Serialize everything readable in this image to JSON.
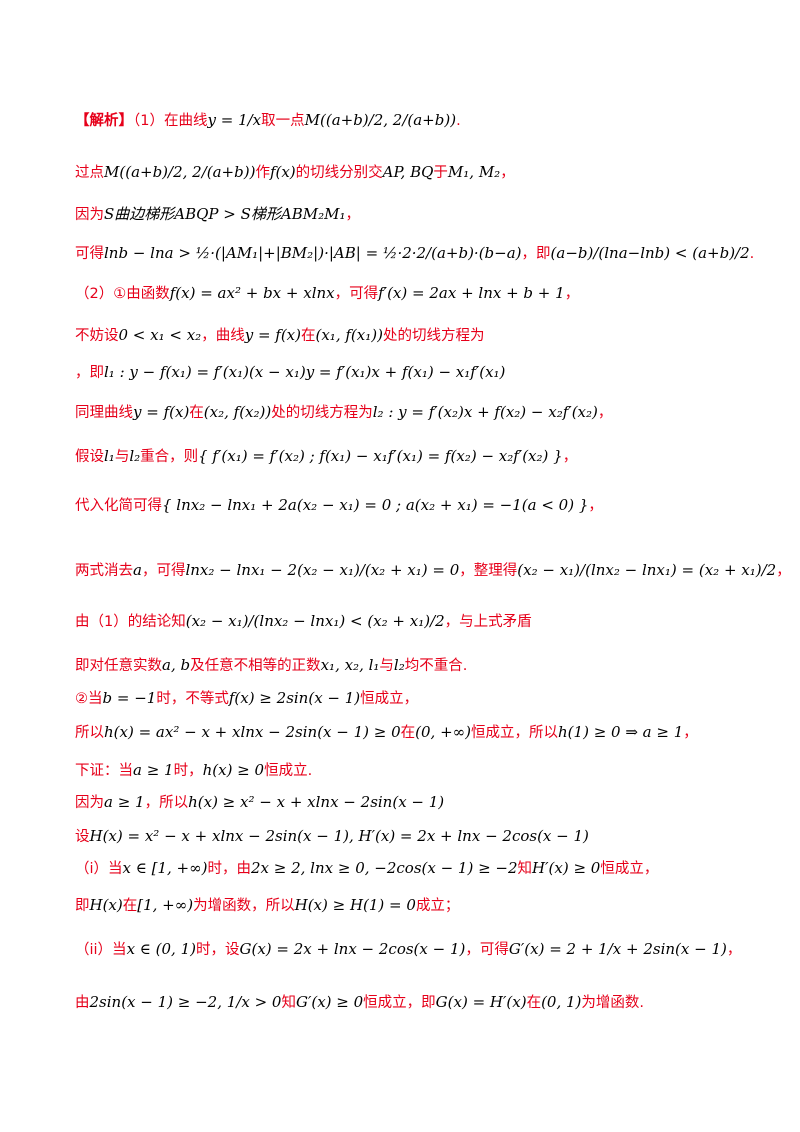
{
  "lines": [
    {
      "tag": "【解析】",
      "cn1": "（1）在曲线",
      "m1": "y = 1/x",
      "cn2": "取一点",
      "m2": "M((a+b)/2, 2/(a+b))",
      "cn3": "."
    },
    {
      "cn1": "过点",
      "m1": "M((a+b)/2, 2/(a+b))",
      "cn2": "作",
      "m2": "f(x)",
      "cn3": "的切线分别交",
      "m3": "AP, BQ",
      "cn4": "于",
      "m4": "M₁, M₂",
      "cn5": "，"
    },
    {
      "cn1": "因为",
      "m1": "S曲边梯形ABQP > S梯形ABM₂M₁",
      "cn2": "，"
    },
    {
      "cn1": "可得",
      "m1": "lnb − lna > ½·(|AM₁|+|BM₂|)·|AB| = ½·2·2/(a+b)·(b−a)",
      "cn2": "，即",
      "m2": "(a−b)/(lna−lnb) < (a+b)/2",
      "cn3": "."
    },
    {
      "cn1": "（2）①由函数",
      "m1": "f(x) = ax² + bx + xlnx",
      "cn2": "，可得",
      "m2": "f′(x) = 2ax + lnx + b + 1",
      "cn3": "，"
    },
    {
      "cn1": "不妨设",
      "m1": "0 < x₁ < x₂",
      "cn2": "，曲线",
      "m2": "y = f(x)",
      "cn3": "在",
      "m3": "(x₁, f(x₁))",
      "cn4": "处的切线方程为"
    },
    {
      "m1": "l₁ : y − f(x₁) = f′(x₁)(x − x₁)",
      "cn1": "，即",
      "m2": "y = f′(x₁)x + f(x₁) − x₁f′(x₁)"
    },
    {
      "cn1": "同理曲线",
      "m1": "y = f(x)",
      "cn2": "在",
      "m2": "(x₂, f(x₂))",
      "cn3": "处的切线方程为",
      "m3": "l₂ : y = f′(x₂)x + f(x₂) − x₂f′(x₂)",
      "cn4": "，"
    },
    {
      "cn1": "假设",
      "m1": "l₁",
      "cn2": "与",
      "m2": "l₂",
      "cn3": "重合，则",
      "m3": "{ f′(x₁) = f′(x₂) ; f(x₁) − x₁f′(x₁) = f(x₂) − x₂f′(x₂) }",
      "cn4": "，"
    },
    {
      "cn1": "代入化简可得",
      "m1": "{ lnx₂ − lnx₁ + 2a(x₂ − x₁) = 0 ; a(x₂ + x₁) = −1(a < 0) }",
      "cn2": "，"
    },
    {
      "cn1": "两式消去",
      "m1": "a",
      "cn2": "，可得",
      "m2": "lnx₂ − lnx₁ − 2(x₂ − x₁)/(x₂ + x₁) = 0",
      "cn3": "，整理得",
      "m3": "(x₂ − x₁)/(lnx₂ − lnx₁) = (x₂ + x₁)/2",
      "cn4": "，"
    },
    {
      "cn1": "由（1）的结论知",
      "m1": "(x₂ − x₁)/(lnx₂ − lnx₁) < (x₂ + x₁)/2",
      "cn2": "，与上式矛盾"
    },
    {
      "cn1": "即对任意实数",
      "m1": "a, b",
      "cn2": "及任意不相等的正数",
      "m2": "x₁, x₂, l₁",
      "cn3": "与",
      "m3": "l₂",
      "cn4": "均不重合."
    },
    {
      "cn1": "②当",
      "m1": "b = −1",
      "cn2": "时，不等式",
      "m2": "f(x) ≥ 2sin(x − 1)",
      "cn3": "恒成立，"
    },
    {
      "cn1": "所以",
      "m1": "h(x) = ax² − x + xlnx − 2sin(x − 1) ≥ 0",
      "cn2": "在",
      "m2": "(0, +∞)",
      "cn3": "恒成立，所以",
      "m3": "h(1) ≥ 0 ⇒ a ≥ 1",
      "cn4": "，"
    },
    {
      "cn1": "下证：当",
      "m1": "a ≥ 1",
      "cn2": "时，",
      "m2": "h(x) ≥ 0",
      "cn3": "恒成立."
    },
    {
      "cn1": "因为",
      "m1": "a ≥ 1",
      "cn2": "，所以",
      "m2": "h(x) ≥ x² − x + xlnx − 2sin(x − 1)"
    },
    {
      "cn1": "设",
      "m1": "H(x) = x² − x + xlnx − 2sin(x − 1), H′(x) = 2x + lnx − 2cos(x − 1)"
    },
    {
      "cn1": "（i）当",
      "m1": "x ∈ [1, +∞)",
      "cn2": "时，由",
      "m2": "2x ≥ 2, lnx ≥ 0, −2cos(x − 1) ≥ −2",
      "cn3": "知",
      "m3": "H′(x) ≥ 0",
      "cn4": "恒成立，"
    },
    {
      "cn1": "即",
      "m1": "H(x)",
      "cn2": "在",
      "m2": "[1, +∞)",
      "cn3": "为增函数，所以",
      "m3": "H(x) ≥ H(1) = 0",
      "cn4": "成立；"
    },
    {
      "cn1": "（ii）当",
      "m1": "x ∈ (0, 1)",
      "cn2": "时，设",
      "m2": "G(x) = 2x + lnx − 2cos(x − 1)",
      "cn3": "，可得",
      "m3": "G′(x) = 2 + 1/x + 2sin(x − 1)",
      "cn4": "，"
    },
    {
      "cn1": "由",
      "m1": "2sin(x − 1) ≥ −2, 1/x > 0",
      "cn2": "知",
      "m2": "G′(x) ≥ 0",
      "cn3": "恒成立，即",
      "m3": "G(x) = H′(x)",
      "cn4": "在",
      "m4": "(0, 1)",
      "cn5": "为增函数."
    }
  ]
}
